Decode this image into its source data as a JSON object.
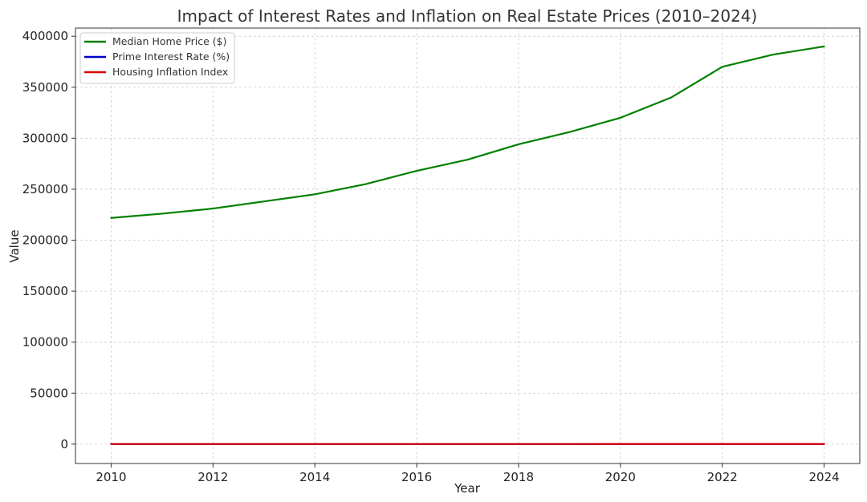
{
  "chart_data": {
    "type": "line",
    "title": "Impact of Interest Rates and Inflation on Real Estate Prices (2010–2024)",
    "xlabel": "Year",
    "ylabel": "Value",
    "xlim": [
      2009.3,
      2024.7
    ],
    "ylim": [
      -19000,
      408000
    ],
    "grid": true,
    "legend_position": "top-left",
    "x_ticks": [
      2010,
      2012,
      2014,
      2016,
      2018,
      2020,
      2022,
      2024
    ],
    "y_ticks": [
      0,
      50000,
      100000,
      150000,
      200000,
      250000,
      300000,
      350000,
      400000
    ],
    "x": [
      2010,
      2011,
      2012,
      2013,
      2014,
      2015,
      2016,
      2017,
      2018,
      2019,
      2020,
      2021,
      2022,
      2023,
      2024
    ],
    "series": [
      {
        "name": "Median Home Price ($)",
        "color": "#008000",
        "values": [
          221800,
          226000,
          231000,
          238000,
          245000,
          255000,
          268000,
          279000,
          294000,
          306000,
          320000,
          340000,
          370000,
          382000,
          390000
        ]
      },
      {
        "name": "Prime Interest Rate (%)",
        "color": "#0000cc",
        "values": [
          3.25,
          3.25,
          3.25,
          3.25,
          3.25,
          3.5,
          3.75,
          4.5,
          5.25,
          5.25,
          3.25,
          3.25,
          7.5,
          8.5,
          8.5
        ]
      },
      {
        "name": "Housing Inflation Index",
        "color": "#dd0000",
        "values": [
          100,
          102,
          104,
          107,
          110,
          114,
          119,
          125,
          131,
          136,
          141,
          150,
          165,
          172,
          178
        ]
      }
    ]
  }
}
